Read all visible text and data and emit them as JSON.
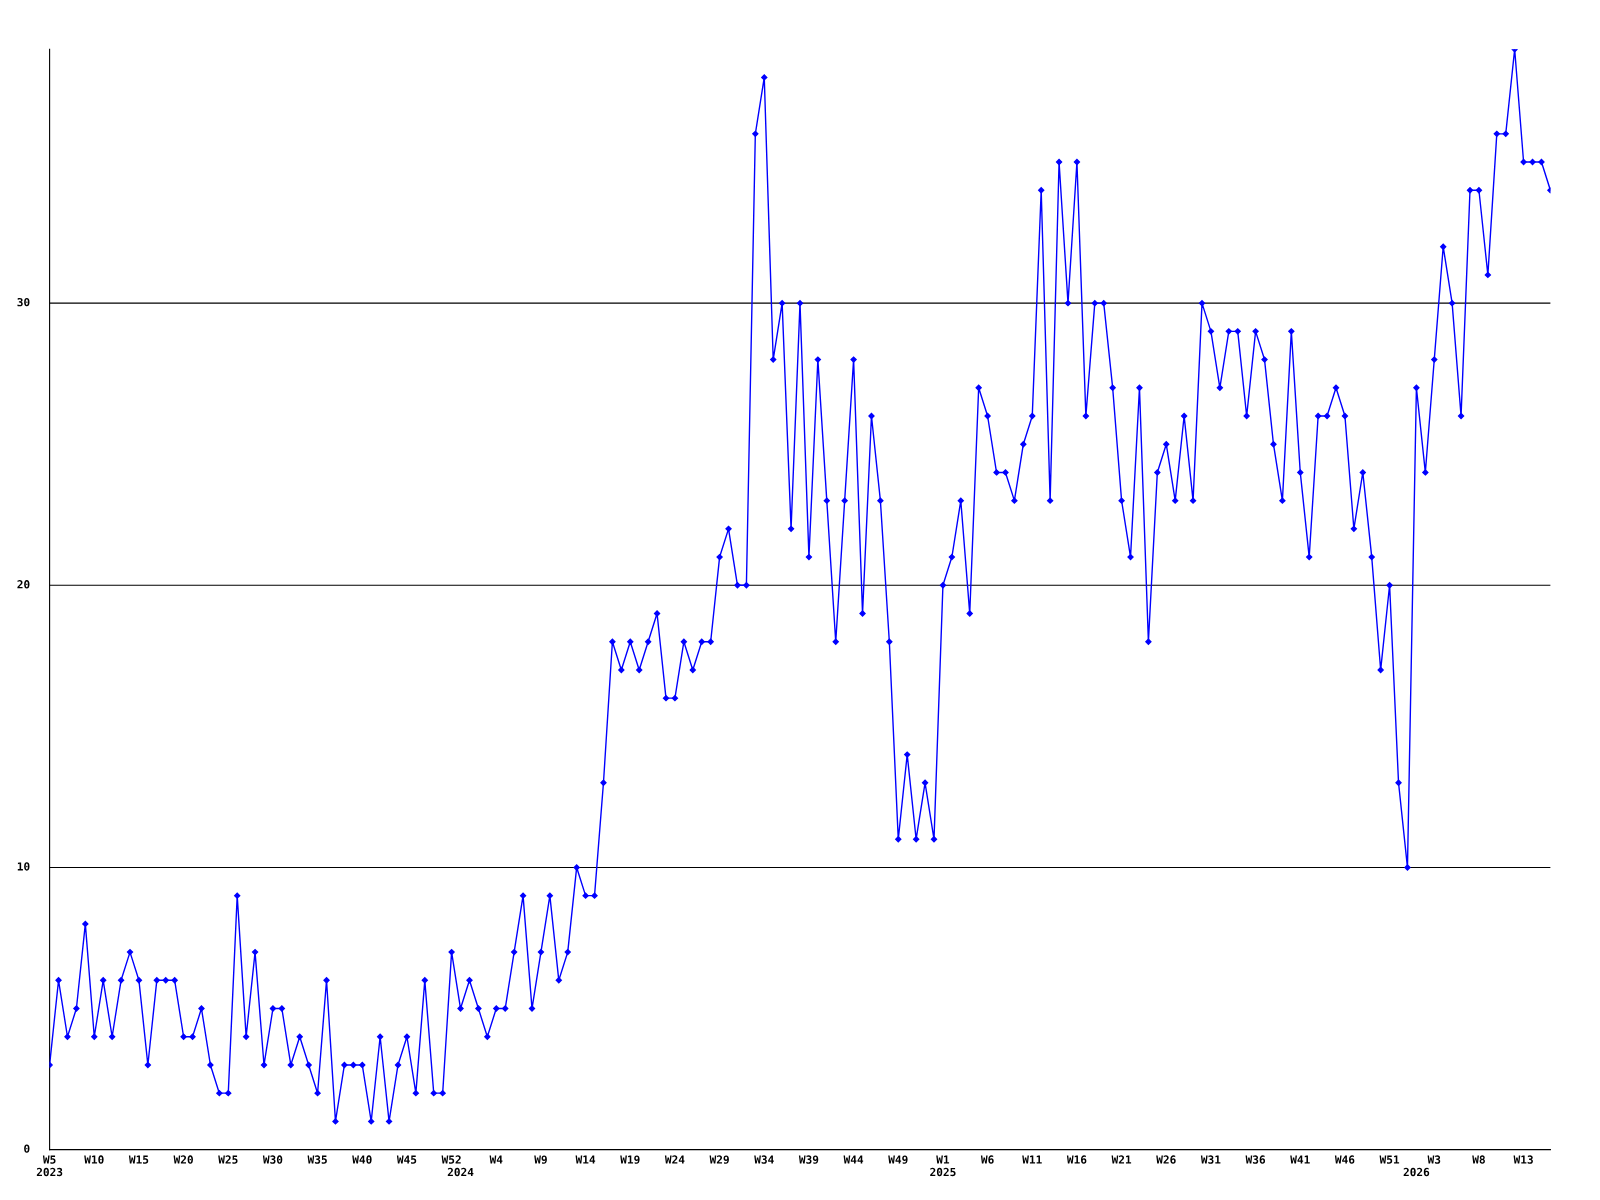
{
  "chart_data": {
    "type": "line",
    "categories": [
      "W5\n2023",
      null,
      null,
      null,
      null,
      "W10",
      null,
      null,
      null,
      null,
      "W15",
      null,
      null,
      null,
      null,
      "W20",
      null,
      null,
      null,
      null,
      "W25",
      null,
      null,
      null,
      null,
      "W30",
      null,
      null,
      null,
      null,
      "W35",
      null,
      null,
      null,
      null,
      "W40",
      null,
      null,
      null,
      null,
      "W45",
      null,
      null,
      null,
      null,
      "W52",
      "\n2024",
      null,
      null,
      null,
      "W4",
      null,
      null,
      null,
      null,
      "W9",
      null,
      null,
      null,
      null,
      "W14",
      null,
      null,
      null,
      null,
      "W19",
      null,
      null,
      null,
      null,
      "W24",
      null,
      null,
      null,
      null,
      "W29",
      null,
      null,
      null,
      null,
      "W34",
      null,
      null,
      null,
      null,
      "W39",
      null,
      null,
      null,
      null,
      "W44",
      null,
      null,
      null,
      null,
      "W49",
      null,
      null,
      null,
      null,
      "W1\n2025",
      null,
      null,
      null,
      null,
      "W6",
      null,
      null,
      null,
      null,
      "W11",
      null,
      null,
      null,
      null,
      "W16",
      null,
      null,
      null,
      null,
      "W21",
      null,
      null,
      null,
      null,
      "W26",
      null,
      null,
      null,
      null,
      "W31",
      null,
      null,
      null,
      null,
      "W36",
      null,
      null,
      null,
      null,
      "W41",
      null,
      null,
      null,
      null,
      "W46",
      null,
      null,
      null,
      null,
      "W51",
      null,
      null,
      "\n2026",
      null,
      "W3",
      null,
      null,
      null,
      null,
      "W8",
      null,
      null,
      null,
      null,
      "W13",
      null,
      null,
      null
    ],
    "series": [
      {
        "color": "#0000ff",
        "values": [
          3,
          6,
          4,
          5,
          8,
          4,
          6,
          4,
          6,
          7,
          6,
          3,
          6,
          6,
          6,
          4,
          4,
          5,
          3,
          2,
          2,
          9,
          4,
          7,
          3,
          5,
          5,
          3,
          4,
          3,
          2,
          6,
          1,
          3,
          3,
          3,
          1,
          4,
          1,
          3,
          4,
          2,
          6,
          2,
          2,
          7,
          5,
          6,
          5,
          4,
          5,
          5,
          7,
          9,
          5,
          7,
          9,
          6,
          7,
          10,
          9,
          9,
          13,
          18,
          17,
          18,
          17,
          18,
          19,
          16,
          16,
          18,
          17,
          18,
          18,
          21,
          22,
          20,
          20,
          36,
          38,
          28,
          30,
          22,
          30,
          21,
          28,
          23,
          18,
          23,
          28,
          19,
          26,
          23,
          18,
          11,
          14,
          11,
          13,
          11,
          20,
          21,
          23,
          19,
          27,
          26,
          24,
          24,
          23,
          25,
          26,
          34,
          23,
          35,
          30,
          35,
          26,
          30,
          30,
          27,
          23,
          21,
          27,
          18,
          24,
          25,
          23,
          26,
          23,
          30,
          29,
          27,
          29,
          29,
          26,
          29,
          28,
          25,
          23,
          29,
          24,
          21,
          26,
          26,
          27,
          26,
          22,
          24,
          21,
          17,
          20,
          13,
          10,
          27,
          24,
          28,
          32,
          30,
          26,
          34,
          34,
          31,
          36,
          36,
          39,
          35,
          35,
          35,
          34
        ]
      }
    ],
    "ylim": [
      0,
      39
    ],
    "yticks": [
      0,
      10,
      20,
      30
    ],
    "grid": "y",
    "marker": "diamond",
    "line_style": "solid"
  }
}
